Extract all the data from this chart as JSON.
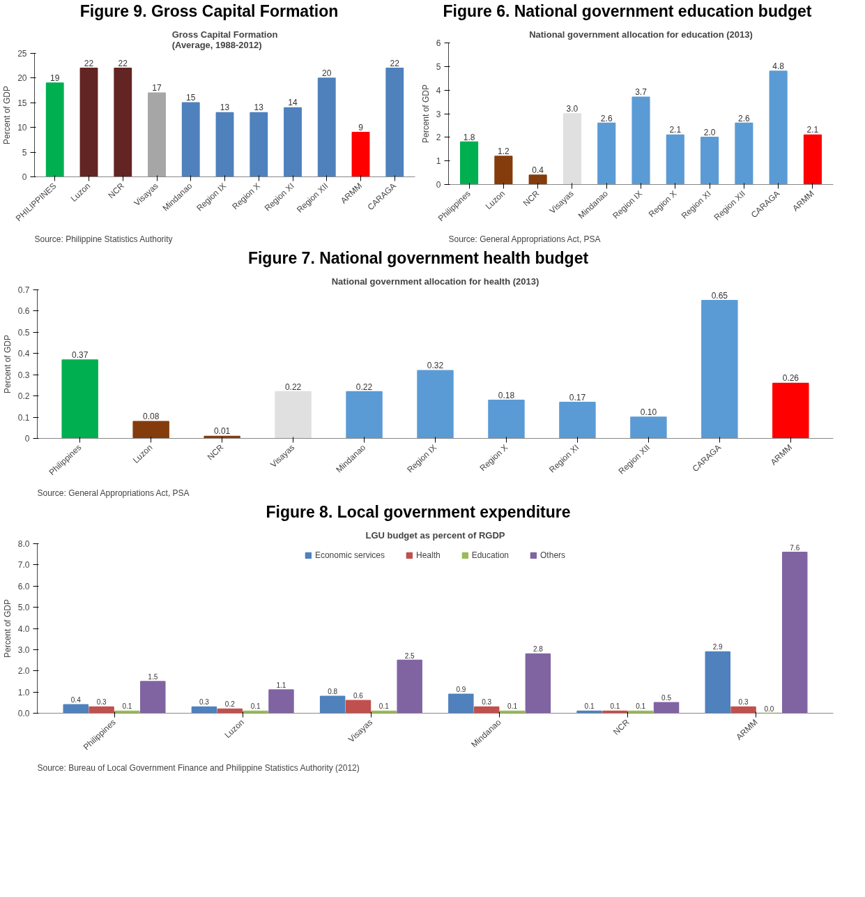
{
  "chart_data": [
    {
      "type": "bar",
      "title": "Figure 9. Gross Capital Formation",
      "subtitle": "Gross Capital Formation\n(Average, 1988-2012)",
      "ylabel": "Percent of GDP",
      "categories": [
        "PHILIPPINES",
        "Luzon",
        "NCR",
        "Visayas",
        "Mindanao",
        "Region IX",
        "Region X",
        "Region XI",
        "Region XII",
        "ARMM",
        "CARAGA"
      ],
      "values": [
        19,
        22,
        22,
        17,
        15,
        13,
        13,
        14,
        20,
        9,
        22
      ],
      "colors": [
        "#00b050",
        "#632523",
        "#632523",
        "#a6a6a6",
        "#4f81bd",
        "#4f81bd",
        "#4f81bd",
        "#4f81bd",
        "#4f81bd",
        "#ff0000",
        "#4f81bd"
      ],
      "ylim": [
        0,
        25
      ],
      "yticks": [
        0,
        5,
        10,
        15,
        20,
        25
      ],
      "data_labels": true,
      "annotations": [
        "Source: Philippine Statistics Authority"
      ]
    },
    {
      "type": "bar",
      "title": "Figure 6. National government education budget",
      "subtitle": "National government allocation for education (2013)",
      "ylabel": "Percent of GDP",
      "categories": [
        "Philippines",
        "Luzon",
        "NCR",
        "Visayas",
        "Mindanao",
        "Region IX",
        "Region X",
        "Region XI",
        "Region XII",
        "CARAGA",
        "ARMM"
      ],
      "values": [
        1.8,
        1.2,
        0.4,
        3.0,
        2.6,
        3.7,
        2.1,
        2.0,
        2.6,
        4.8,
        2.1
      ],
      "colors": [
        "#00b050",
        "#843c0c",
        "#843c0c",
        "#e0e0e0",
        "#5b9bd5",
        "#5b9bd5",
        "#5b9bd5",
        "#5b9bd5",
        "#5b9bd5",
        "#5b9bd5",
        "#ff0000"
      ],
      "ylim": [
        0,
        6
      ],
      "yticks": [
        0,
        1,
        2,
        3,
        4,
        5,
        6
      ],
      "value_labels": [
        "1.8",
        "1.2",
        "0.4",
        "3.0",
        "2.6",
        "3.7",
        "2.1",
        "2.0",
        "2.6",
        "4.8",
        "2.1"
      ],
      "annotations": [
        "Source: General Appropriations Act, PSA"
      ]
    },
    {
      "type": "bar",
      "title": "Figure 7. National government health budget",
      "subtitle": "National government allocation for health (2013)",
      "ylabel": "Percent of GDP",
      "categories": [
        "Philippines",
        "Luzon",
        "NCR",
        "Visayas",
        "Mindanao",
        "Region IX",
        "Region X",
        "Region XI",
        "Region XII",
        "CARAGA",
        "ARMM"
      ],
      "values": [
        0.37,
        0.08,
        0.01,
        0.22,
        0.22,
        0.32,
        0.18,
        0.17,
        0.1,
        0.65,
        0.26
      ],
      "value_labels": [
        "0.37",
        "0.08",
        "0.01",
        "0.22",
        "0.22",
        "0.32",
        "0.18",
        "0.17",
        "0.10",
        "0.65",
        "0.26"
      ],
      "colors": [
        "#00b050",
        "#843c0c",
        "#843c0c",
        "#e0e0e0",
        "#5b9bd5",
        "#5b9bd5",
        "#5b9bd5",
        "#5b9bd5",
        "#5b9bd5",
        "#5b9bd5",
        "#ff0000"
      ],
      "ylim": [
        0,
        0.7
      ],
      "yticks": [
        0,
        0.1,
        0.2,
        0.3,
        0.4,
        0.5,
        0.6,
        0.7
      ],
      "annotations": [
        "Source: General Appropriations Act, PSA"
      ]
    },
    {
      "type": "bar",
      "title": "Figure 8. Local government expenditure",
      "subtitle": "LGU budget as percent of RGDP",
      "ylabel": "Percent of GDP",
      "categories": [
        "Philippines",
        "Luzon",
        "Visayas",
        "Mindanao",
        "NCR",
        "ARMM"
      ],
      "series": [
        {
          "name": "Economic services",
          "color": "#4f81bd",
          "values": [
            0.4,
            0.3,
            0.8,
            0.9,
            0.1,
            2.9
          ],
          "value_labels": [
            "0.4",
            "0.3",
            "0.8",
            "0.9",
            "0.1",
            "2.9"
          ]
        },
        {
          "name": "Health",
          "color": "#c0504d",
          "values": [
            0.3,
            0.2,
            0.6,
            0.3,
            0.1,
            0.3
          ],
          "value_labels": [
            "0.3",
            "0.2",
            "0.6",
            "0.3",
            "0.1",
            "0.3"
          ]
        },
        {
          "name": "Education",
          "color": "#9bbb59",
          "values": [
            0.1,
            0.1,
            0.1,
            0.1,
            0.1,
            0
          ],
          "value_labels": [
            "0.1",
            "0.1",
            "0.1",
            "0.1",
            "0.1",
            "0.0"
          ]
        },
        {
          "name": "Others",
          "color": "#8064a2",
          "values": [
            1.5,
            1.1,
            2.5,
            2.8,
            0.5,
            7.6
          ],
          "value_labels": [
            "1.5",
            "1.1",
            "2.5",
            "2.8",
            "0.5",
            "7.6"
          ]
        }
      ],
      "ylim": [
        0,
        8
      ],
      "yticks": [
        {
          "value": 0,
          "label": "0.0"
        },
        {
          "value": 1,
          "label": "1.0"
        },
        {
          "value": 2,
          "label": "2.0"
        },
        {
          "value": 3,
          "label": "3.0"
        },
        {
          "value": 4,
          "label": "4.0"
        },
        {
          "value": 5,
          "label": "5.0"
        },
        {
          "value": 6,
          "label": "6.0"
        },
        {
          "value": 7,
          "label": "7.0"
        },
        {
          "value": 8,
          "label": "8.0"
        }
      ],
      "legend": "top",
      "annotations": [
        "Source: Bureau of Local Government  Finance and Philippine Statistics Authority (2012)"
      ]
    }
  ]
}
